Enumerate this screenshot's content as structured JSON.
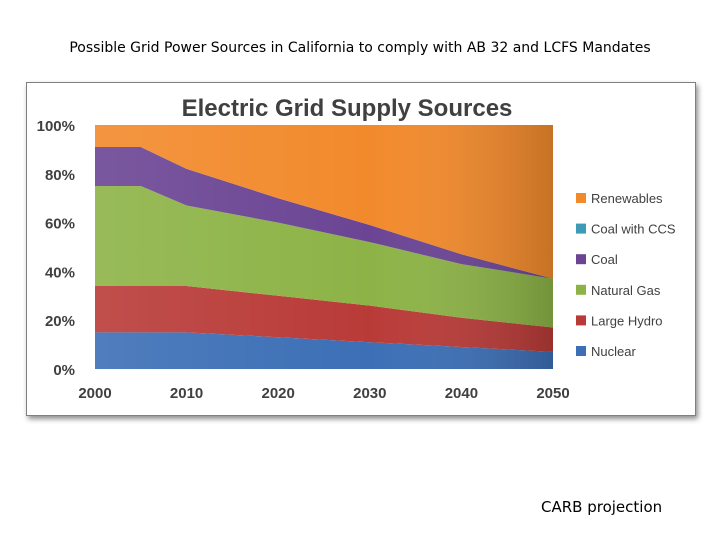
{
  "slide": {
    "title": "Possible Grid Power Sources in California to comply with AB 32 and LCFS Mandates",
    "footer": "CARB projection"
  },
  "chart_data": {
    "type": "area",
    "stacked": true,
    "title": "Electric Grid Supply Sources",
    "x": [
      2000,
      2005,
      2010,
      2020,
      2030,
      2040,
      2050
    ],
    "xticks": [
      "2000",
      "2010",
      "2020",
      "2030",
      "2040",
      "2050"
    ],
    "yticks": [
      "0%",
      "20%",
      "40%",
      "60%",
      "80%",
      "100%"
    ],
    "ylim": [
      0,
      100
    ],
    "xlim": [
      2000,
      2050
    ],
    "grid": false,
    "legend_position": "right",
    "series": [
      {
        "name": "Nuclear",
        "color": "#3c6fb6",
        "values": [
          15,
          15,
          15,
          13,
          11,
          9,
          7
        ]
      },
      {
        "name": "Large Hydro",
        "color": "#b93b38",
        "values": [
          19,
          19,
          19,
          17,
          15,
          12,
          10
        ]
      },
      {
        "name": "Natural Gas",
        "color": "#8db347",
        "values": [
          41,
          41,
          33,
          30,
          26,
          22,
          20
        ]
      },
      {
        "name": "Coal",
        "color": "#6b4594",
        "values": [
          16,
          16,
          15,
          10,
          7,
          4,
          0
        ]
      },
      {
        "name": "Coal with CCS",
        "color": "#3d9bb8",
        "values": [
          0,
          0,
          0,
          0,
          0,
          0,
          0
        ]
      },
      {
        "name": "Renewables",
        "color": "#f28a2c",
        "values": [
          9,
          9,
          18,
          30,
          41,
          53,
          63
        ]
      }
    ],
    "legend_order": [
      "Renewables",
      "Coal with CCS",
      "Coal",
      "Natural Gas",
      "Large Hydro",
      "Nuclear"
    ]
  }
}
